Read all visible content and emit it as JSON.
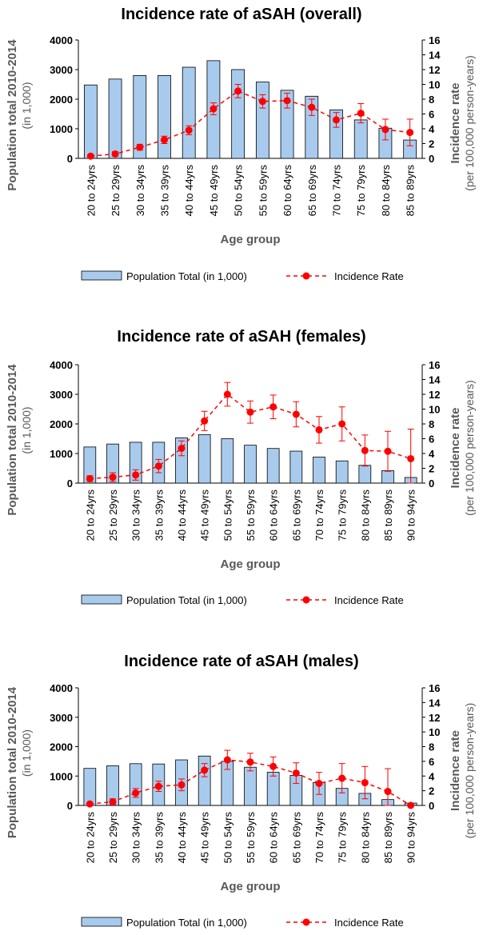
{
  "chart_data": [
    {
      "type": "bar",
      "title": "Incidence rate of aSAH (overall)",
      "categories": [
        "20 to 24yrs",
        "25 to 29yrs",
        "30 to 34yrs",
        "35 to 39yrs",
        "40 to 44yrs",
        "45 to 49yrs",
        "50 to 54yrs",
        "55 to 59yrs",
        "60 to 64yrs",
        "65 to 69yrs",
        "70 to 74yrs",
        "75 to 79yrs",
        "80 to 84yrs",
        "85 to 89yrs"
      ],
      "xlabel": "Age group",
      "ylabel_left": "Population total 2010-2014",
      "ylabel_left_sub": "(in 1,000)",
      "ylabel_right": "Incidence rate",
      "ylabel_right_sub": "(per 100,000 person-years)",
      "ylim_left": [
        0,
        4000
      ],
      "yticks_left": [
        "0",
        "1000",
        "2000",
        "3000",
        "4000"
      ],
      "ylim_right": [
        0,
        16
      ],
      "yticks_right": [
        "0",
        "2",
        "4",
        "6",
        "8",
        "10",
        "12",
        "14",
        "16"
      ],
      "series": [
        {
          "name": "Population Total (in 1,000)",
          "kind": "bar",
          "color": "#a8cbed",
          "values": [
            2480,
            2680,
            2800,
            2800,
            3080,
            3300,
            3000,
            2580,
            2300,
            2100,
            1640,
            1300,
            1020,
            620
          ]
        },
        {
          "name": "Incidence Rate",
          "kind": "line",
          "color": "#ff0000",
          "values": [
            0.3,
            0.6,
            1.5,
            2.5,
            3.8,
            6.7,
            9.1,
            7.7,
            7.8,
            6.9,
            5.2,
            6.1,
            3.9,
            3.5
          ],
          "err": [
            0.2,
            0.3,
            0.4,
            0.5,
            0.6,
            0.8,
            0.9,
            0.9,
            1.0,
            1.1,
            1.0,
            1.3,
            1.4,
            1.8
          ]
        }
      ]
    },
    {
      "type": "bar",
      "title": "Incidence rate of aSAH (females)",
      "categories": [
        "20 to 24yrs",
        "25 to 29yrs",
        "30 to 34yrs",
        "35 to 39yrs",
        "40 to 44yrs",
        "45 to 49yrs",
        "50 to 54yrs",
        "55 to 59yrs",
        "60 to 64yrs",
        "65 to 69yrs",
        "70 to 74yrs",
        "75 to 79yrs",
        "80 to 84yrs",
        "85 to 89yrs",
        "90 to 94yrs"
      ],
      "xlabel": "Age group",
      "ylabel_left": "Population total 2010-2014",
      "ylabel_left_sub": "(in 1,000)",
      "ylabel_right": "Incidence rate",
      "ylabel_right_sub": "(per 100,000 person-years)",
      "ylim_left": [
        0,
        4000
      ],
      "yticks_left": [
        "0",
        "1000",
        "2000",
        "3000",
        "4000"
      ],
      "ylim_right": [
        0,
        16
      ],
      "yticks_right": [
        "0",
        "2",
        "4",
        "6",
        "8",
        "10",
        "12",
        "14",
        "16"
      ],
      "series": [
        {
          "name": "Population Total (in 1,000)",
          "kind": "bar",
          "color": "#a8cbed",
          "values": [
            1220,
            1320,
            1380,
            1380,
            1530,
            1640,
            1500,
            1280,
            1170,
            1080,
            880,
            750,
            600,
            420,
            190
          ]
        },
        {
          "name": "Incidence Rate",
          "kind": "line",
          "color": "#ff0000",
          "values": [
            0.6,
            0.8,
            1.1,
            2.3,
            4.7,
            8.4,
            12.0,
            9.6,
            10.3,
            9.3,
            7.2,
            8.0,
            4.4,
            4.3,
            3.3
          ],
          "err": [
            0.4,
            0.6,
            0.7,
            0.9,
            1.0,
            1.3,
            1.6,
            1.5,
            1.6,
            1.7,
            1.8,
            2.3,
            2.1,
            2.7,
            4.0
          ]
        }
      ]
    },
    {
      "type": "bar",
      "title": "Incidence rate of aSAH (males)",
      "categories": [
        "20 to 24yrs",
        "25 to 29yrs",
        "30 to 34yrs",
        "35 to 39yrs",
        "40 to 44yrs",
        "45 to 49yrs",
        "50 to 54yrs",
        "55 to 59yrs",
        "60 to 64yrs",
        "65 to 69yrs",
        "70 to 74yrs",
        "75 to 79yrs",
        "80 to 84yrs",
        "85 to 89yrs",
        "90 to 94yrs"
      ],
      "xlabel": "Age group",
      "ylabel_left": "Population total 2010-2014",
      "ylabel_left_sub": "(in 1,000)",
      "ylabel_right": "Incidence rate",
      "ylabel_right_sub": "(per 100,000 person-years)",
      "ylim_left": [
        0,
        4000
      ],
      "yticks_left": [
        "0",
        "1000",
        "2000",
        "3000",
        "4000"
      ],
      "ylim_right": [
        0,
        16
      ],
      "yticks_right": [
        "0",
        "2",
        "4",
        "6",
        "8",
        "10",
        "12",
        "14",
        "16"
      ],
      "series": [
        {
          "name": "Population Total (in 1,000)",
          "kind": "bar",
          "color": "#a8cbed",
          "values": [
            1260,
            1350,
            1420,
            1410,
            1550,
            1680,
            1500,
            1300,
            1130,
            1020,
            780,
            580,
            410,
            200,
            80
          ]
        },
        {
          "name": "Incidence Rate",
          "kind": "line",
          "color": "#ff0000",
          "values": [
            0.2,
            0.5,
            1.7,
            2.6,
            2.8,
            4.8,
            6.2,
            5.9,
            5.3,
            4.4,
            3.0,
            3.7,
            3.1,
            1.9,
            0.0
          ],
          "err": [
            0.2,
            0.4,
            0.6,
            0.7,
            0.8,
            0.9,
            1.3,
            1.2,
            1.3,
            1.4,
            1.5,
            2.0,
            2.2,
            3.1,
            0.0
          ]
        }
      ]
    }
  ]
}
